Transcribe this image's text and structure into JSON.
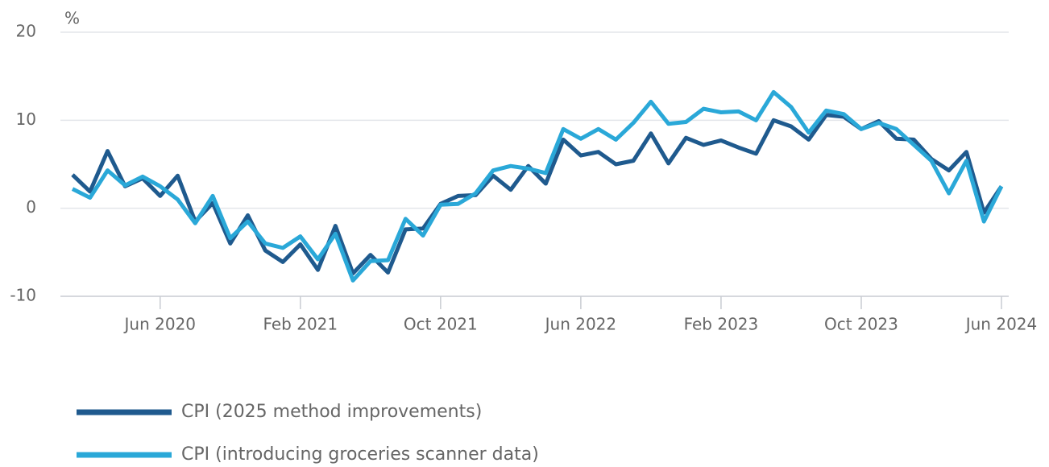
{
  "chart_data": {
    "type": "line",
    "y_label": "%",
    "categories": [
      null,
      null,
      null,
      null,
      null,
      "Jun 2020",
      null,
      null,
      null,
      null,
      null,
      null,
      null,
      "Feb 2021",
      null,
      null,
      null,
      null,
      null,
      null,
      null,
      "Oct 2021",
      null,
      null,
      null,
      null,
      null,
      null,
      null,
      "Jun 2022",
      null,
      null,
      null,
      null,
      null,
      null,
      null,
      "Feb 2023",
      null,
      null,
      null,
      null,
      null,
      null,
      null,
      "Oct 2023",
      null,
      null,
      null,
      null,
      null,
      null,
      null,
      "Jun 2024"
    ],
    "series": [
      {
        "name": "CPI (2025 method improvements)",
        "color": "#1f5a8e",
        "values": [
          3.8,
          1.9,
          6.5,
          2.5,
          3.4,
          1.4,
          3.7,
          -1.5,
          0.6,
          -4.0,
          -0.8,
          -4.8,
          -6.1,
          -4.1,
          -7.0,
          -2.0,
          -7.4,
          -5.3,
          -7.3,
          -2.4,
          -2.3,
          0.5,
          1.4,
          1.5,
          3.7,
          2.1,
          4.8,
          2.8,
          7.8,
          6.0,
          6.4,
          5.0,
          5.4,
          8.5,
          5.1,
          8.0,
          7.2,
          7.7,
          6.9,
          6.2,
          10.0,
          9.3,
          7.8,
          10.6,
          10.4,
          9.0,
          9.9,
          7.9,
          7.8,
          5.6,
          4.3,
          6.4,
          -0.5,
          2.5
        ]
      },
      {
        "name": "CPI (introducing groceries scanner data)",
        "color": "#2aa8d8",
        "values": [
          2.2,
          1.2,
          4.3,
          2.6,
          3.6,
          2.5,
          1.0,
          -1.7,
          1.4,
          -3.4,
          -1.5,
          -4.0,
          -4.5,
          -3.2,
          -5.8,
          -2.9,
          -8.2,
          -6.0,
          -5.9,
          -1.2,
          -3.1,
          0.4,
          0.5,
          1.7,
          4.3,
          4.8,
          4.5,
          4.0,
          9.0,
          7.9,
          9.0,
          7.8,
          9.7,
          12.1,
          9.6,
          9.8,
          11.3,
          10.9,
          11.0,
          10.0,
          13.2,
          11.5,
          8.6,
          11.1,
          10.7,
          9.0,
          9.7,
          9.0,
          7.2,
          5.4,
          1.7,
          5.4,
          -1.5,
          2.5
        ]
      }
    ],
    "ylim": [
      -10,
      20
    ],
    "yticks": [
      -10,
      0,
      10,
      20
    ],
    "grid": true,
    "legend": "bottom-left"
  }
}
